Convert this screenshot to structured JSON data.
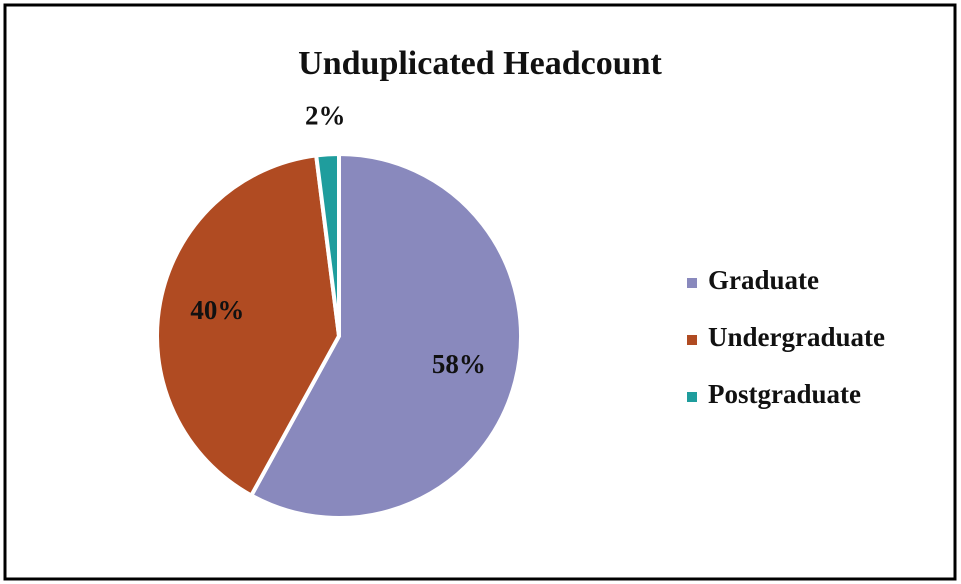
{
  "chart_data": {
    "type": "pie",
    "title": "Unduplicated Headcount",
    "categories": [
      "Graduate",
      "Undergraduate",
      "Postgraduate"
    ],
    "values": [
      58,
      40,
      2
    ],
    "value_labels": [
      "58%",
      "40%",
      "2%"
    ],
    "colors": [
      "#8989bd",
      "#b04b22",
      "#1f9d9d"
    ],
    "legend": "right"
  }
}
